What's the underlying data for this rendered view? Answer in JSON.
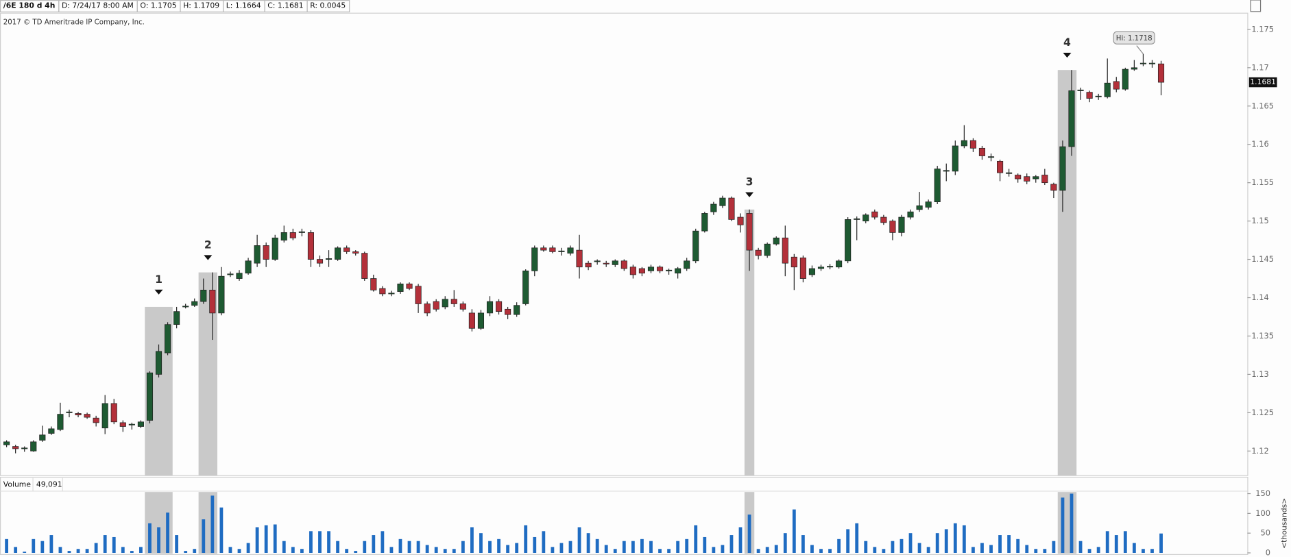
{
  "chart_data": {
    "type": "candlestick",
    "header": [
      "/6E 180 d 4h",
      "D: 7/24/17 8:00 AM",
      "O: 1.1705",
      "H: 1.1709",
      "L: 1.1664",
      "C: 1.1681",
      "R: 0.0045"
    ],
    "copyright": "2017 © TD Ameritrade IP Company, Inc.",
    "up_color": "#1e5a32",
    "down_color": "#b3303a",
    "open": [
      1.1208,
      1.1206,
      1.1203,
      1.12,
      1.1214,
      1.1223,
      1.1228,
      1.125,
      1.1249,
      1.1248,
      1.1243,
      1.123,
      1.1262,
      1.1237,
      1.1234,
      1.1232,
      1.124,
      1.13,
      1.1328,
      1.1365,
      1.1388,
      1.139,
      1.1395,
      1.141,
      1.138,
      1.143,
      1.1425,
      1.1432,
      1.1445,
      1.1468,
      1.145,
      1.1475,
      1.1485,
      1.1485,
      1.1485,
      1.145,
      1.145,
      1.145,
      1.1465,
      1.146,
      1.1458,
      1.1425,
      1.1412,
      1.1405,
      1.1408,
      1.1418,
      1.1415,
      1.1392,
      1.1395,
      1.1388,
      1.1398,
      1.1392,
      1.138,
      1.136,
      1.138,
      1.1395,
      1.1385,
      1.1378,
      1.1392,
      1.1435,
      1.1465,
      1.1465,
      1.146,
      1.1458,
      1.1462,
      1.1445,
      1.1447,
      1.1445,
      1.1443,
      1.1448,
      1.144,
      1.1438,
      1.1435,
      1.144,
      1.1435,
      1.1432,
      1.1438,
      1.1448,
      1.1487,
      1.1512,
      1.152,
      1.153,
      1.1505,
      1.151,
      1.1462,
      1.1455,
      1.147,
      1.1478,
      1.1453,
      1.1452,
      1.143,
      1.1438,
      1.144,
      1.144,
      1.1448,
      1.1502,
      1.15,
      1.1512,
      1.1505,
      1.15,
      1.1485,
      1.1505,
      1.1515,
      1.1518,
      1.1525,
      1.1565,
      1.1565,
      1.1598,
      1.1605,
      1.1595,
      1.1583,
      1.1578,
      1.1562,
      1.156,
      1.1558,
      1.1555,
      1.156,
      1.1548,
      1.154,
      1.1597,
      1.167,
      1.1668,
      1.1662,
      1.1662,
      1.1682,
      1.1672,
      1.1698,
      1.1705,
      1.1705,
      1.1705
    ],
    "high": [
      1.1214,
      1.1208,
      1.1206,
      1.1214,
      1.1233,
      1.1232,
      1.1263,
      1.1254,
      1.1251,
      1.125,
      1.1246,
      1.1273,
      1.1268,
      1.124,
      1.1237,
      1.124,
      1.1304,
      1.1339,
      1.1368,
      1.1388,
      1.1392,
      1.1399,
      1.1425,
      1.1433,
      1.144,
      1.1434,
      1.1436,
      1.1452,
      1.1482,
      1.1472,
      1.1482,
      1.1494,
      1.149,
      1.149,
      1.1488,
      1.1455,
      1.1462,
      1.1467,
      1.1468,
      1.1462,
      1.146,
      1.143,
      1.1415,
      1.1409,
      1.142,
      1.142,
      1.1418,
      1.1395,
      1.1398,
      1.1402,
      1.141,
      1.1395,
      1.1385,
      1.1384,
      1.1402,
      1.1398,
      1.1388,
      1.1394,
      1.1437,
      1.1468,
      1.1468,
      1.1468,
      1.1465,
      1.1468,
      1.1482,
      1.1448,
      1.145,
      1.1448,
      1.145,
      1.145,
      1.1443,
      1.144,
      1.1443,
      1.1442,
      1.1438,
      1.144,
      1.1452,
      1.149,
      1.1512,
      1.1525,
      1.1533,
      1.1532,
      1.151,
      1.1515,
      1.1465,
      1.1472,
      1.148,
      1.1494,
      1.1457,
      1.1455,
      1.1442,
      1.1443,
      1.1444,
      1.145,
      1.1505,
      1.1506,
      1.151,
      1.1515,
      1.1508,
      1.1502,
      1.1508,
      1.1515,
      1.1538,
      1.1528,
      1.1572,
      1.1575,
      1.1605,
      1.1625,
      1.1608,
      1.1598,
      1.1588,
      1.158,
      1.1568,
      1.1562,
      1.1562,
      1.156,
      1.1568,
      1.155,
      1.1605,
      1.1697,
      1.1674,
      1.167,
      1.1666,
      1.1712,
      1.1688,
      1.17,
      1.171,
      1.1718,
      1.171,
      1.1709
    ],
    "low": [
      1.1205,
      1.1197,
      1.1199,
      1.1199,
      1.1212,
      1.1221,
      1.1226,
      1.1244,
      1.1244,
      1.1242,
      1.1232,
      1.1222,
      1.1235,
      1.1225,
      1.1228,
      1.123,
      1.1236,
      1.1296,
      1.1325,
      1.136,
      1.1386,
      1.1388,
      1.1392,
      1.1345,
      1.1377,
      1.1427,
      1.1422,
      1.143,
      1.144,
      1.144,
      1.1448,
      1.1472,
      1.1475,
      1.148,
      1.144,
      1.144,
      1.144,
      1.1448,
      1.1457,
      1.1455,
      1.1422,
      1.1408,
      1.1402,
      1.1402,
      1.1405,
      1.141,
      1.138,
      1.1376,
      1.1382,
      1.1385,
      1.1388,
      1.1382,
      1.1356,
      1.1358,
      1.1376,
      1.1378,
      1.1372,
      1.1375,
      1.139,
      1.1428,
      1.146,
      1.1458,
      1.1455,
      1.1455,
      1.1425,
      1.1436,
      1.1443,
      1.144,
      1.144,
      1.1435,
      1.1425,
      1.1428,
      1.1432,
      1.1432,
      1.143,
      1.1425,
      1.1435,
      1.1445,
      1.1485,
      1.1508,
      1.1517,
      1.15,
      1.1485,
      1.1435,
      1.145,
      1.1452,
      1.1468,
      1.1428,
      1.141,
      1.142,
      1.1427,
      1.1435,
      1.1437,
      1.1438,
      1.1445,
      1.1475,
      1.1497,
      1.1502,
      1.1495,
      1.1475,
      1.148,
      1.1502,
      1.1512,
      1.1515,
      1.1522,
      1.1552,
      1.156,
      1.1595,
      1.159,
      1.158,
      1.1578,
      1.1552,
      1.1558,
      1.155,
      1.1548,
      1.155,
      1.1547,
      1.153,
      1.1512,
      1.1585,
      1.1658,
      1.1655,
      1.1658,
      1.166,
      1.1668,
      1.167,
      1.1696,
      1.1702,
      1.17,
      1.1664
    ],
    "close": [
      1.1212,
      1.1203,
      1.1204,
      1.1212,
      1.1221,
      1.1229,
      1.1248,
      1.1251,
      1.1247,
      1.1244,
      1.1237,
      1.1262,
      1.1238,
      1.1232,
      1.1235,
      1.1238,
      1.1302,
      1.133,
      1.1365,
      1.1382,
      1.1389,
      1.1395,
      1.141,
      1.138,
      1.1428,
      1.1431,
      1.1432,
      1.1448,
      1.1468,
      1.145,
      1.1478,
      1.1485,
      1.1478,
      1.1486,
      1.145,
      1.1445,
      1.1451,
      1.1465,
      1.146,
      1.1458,
      1.1425,
      1.141,
      1.1405,
      1.1406,
      1.1418,
      1.1412,
      1.1392,
      1.138,
      1.1385,
      1.1398,
      1.1392,
      1.1385,
      1.136,
      1.138,
      1.1395,
      1.1382,
      1.1378,
      1.139,
      1.1435,
      1.1465,
      1.1462,
      1.146,
      1.1461,
      1.1465,
      1.144,
      1.144,
      1.1448,
      1.1444,
      1.1448,
      1.1438,
      1.143,
      1.1432,
      1.144,
      1.1435,
      1.1436,
      1.1438,
      1.1448,
      1.1487,
      1.151,
      1.1522,
      1.153,
      1.1502,
      1.1495,
      1.1462,
      1.1455,
      1.147,
      1.1478,
      1.1445,
      1.144,
      1.1425,
      1.1438,
      1.144,
      1.1441,
      1.1448,
      1.1502,
      1.1503,
      1.1508,
      1.1505,
      1.1498,
      1.1485,
      1.1505,
      1.1512,
      1.152,
      1.1525,
      1.1568,
      1.1566,
      1.1598,
      1.1605,
      1.1595,
      1.1585,
      1.1584,
      1.1563,
      1.1563,
      1.1555,
      1.1552,
      1.1558,
      1.155,
      1.154,
      1.1597,
      1.167,
      1.1671,
      1.166,
      1.1663,
      1.168,
      1.1672,
      1.1698,
      1.17,
      1.1706,
      1.1706,
      1.1681
    ],
    "ylim": [
      1.1168,
      1.1769
    ],
    "yticks": [
      1.12,
      1.125,
      1.13,
      1.135,
      1.14,
      1.145,
      1.15,
      1.155,
      1.16,
      1.165,
      1.17,
      1.175
    ],
    "annotations": [
      {
        "label": "1",
        "from": 16,
        "to": 18,
        "price": 1.1388
      },
      {
        "label": "2",
        "from": 22,
        "to": 23,
        "price": 1.1433
      },
      {
        "label": "3",
        "from": 83,
        "to": 83,
        "price": 1.1515
      },
      {
        "label": "4",
        "from": 118,
        "to": 119,
        "price": 1.1697
      }
    ],
    "high_label": {
      "text": "Hi: 1.1718",
      "index": 127
    },
    "volume_title": "Volume",
    "volume_label": "49,091",
    "volume_unit": "<thousands>",
    "volume_color": "#1f6cc2",
    "volume": [
      35,
      15,
      3,
      35,
      30,
      45,
      15,
      5,
      10,
      10,
      25,
      45,
      40,
      15,
      5,
      15,
      75,
      65,
      102,
      45,
      5,
      10,
      85,
      145,
      115,
      15,
      10,
      25,
      65,
      70,
      72,
      30,
      15,
      10,
      55,
      55,
      55,
      30,
      10,
      5,
      30,
      45,
      55,
      15,
      35,
      30,
      30,
      20,
      15,
      10,
      10,
      30,
      65,
      50,
      30,
      35,
      20,
      25,
      70,
      40,
      55,
      15,
      25,
      30,
      65,
      50,
      35,
      20,
      10,
      30,
      30,
      35,
      30,
      10,
      10,
      30,
      35,
      70,
      40,
      15,
      20,
      45,
      65,
      97,
      10,
      15,
      20,
      50,
      110,
      45,
      20,
      10,
      10,
      35,
      60,
      75,
      30,
      15,
      10,
      30,
      35,
      50,
      25,
      15,
      50,
      60,
      75,
      70,
      15,
      25,
      20,
      45,
      45,
      35,
      20,
      10,
      10,
      30,
      140,
      150,
      30,
      10,
      15,
      55,
      45,
      55,
      25,
      10,
      10,
      49.091
    ],
    "vlim": [
      0,
      150
    ],
    "vticks": [
      0,
      50,
      100,
      150
    ]
  }
}
